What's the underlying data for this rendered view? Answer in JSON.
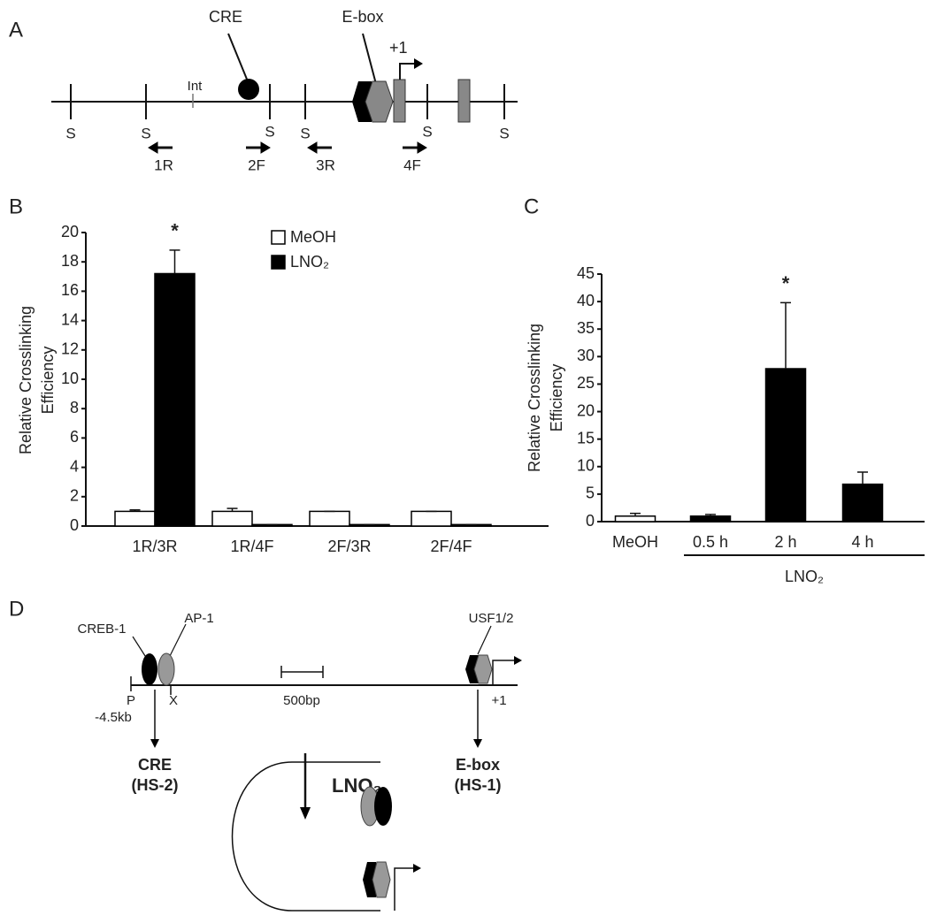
{
  "panels": {
    "a": "A",
    "b": "B",
    "c": "C",
    "d": "D"
  },
  "diagram_a": {
    "cre": "CRE",
    "ebox": "E-box",
    "int": "Int",
    "tss": "+1",
    "sites": [
      "S",
      "S",
      "S",
      "S",
      "S",
      "S"
    ],
    "primers": [
      "1R",
      "2F",
      "3R",
      "4F"
    ]
  },
  "chart_data": [
    {
      "type": "bar",
      "categories": [
        "1R/3R",
        "1R/4F",
        "2F/3R",
        "2F/4F"
      ],
      "series": [
        {
          "name": "MeOH",
          "color": "#ffffff",
          "values": [
            1,
            1,
            1,
            1
          ],
          "errors": [
            0.1,
            0.2,
            0,
            0
          ]
        },
        {
          "name": "LNO₂",
          "color": "#000000",
          "values": [
            17.2,
            0.1,
            0.1,
            0.1
          ],
          "errors": [
            1.6,
            0,
            0,
            0
          ]
        }
      ],
      "ylim": [
        0,
        20
      ],
      "yticks": [
        0,
        2,
        4,
        6,
        8,
        10,
        12,
        14,
        16,
        18,
        20
      ],
      "y_label": [
        "Relative Crosslinking",
        "Efficiency"
      ],
      "annotation": "*"
    },
    {
      "type": "bar",
      "categories": [
        "MeOH",
        "0.5 h",
        "2 h",
        "4 h"
      ],
      "values": [
        1,
        1,
        27.8,
        6.8
      ],
      "errors": [
        0.5,
        0.3,
        12,
        2.2
      ],
      "colors": [
        "#ffffff",
        "#000000",
        "#000000",
        "#000000"
      ],
      "ylim": [
        0,
        45
      ],
      "yticks": [
        0,
        5,
        10,
        15,
        20,
        25,
        30,
        35,
        40,
        45
      ],
      "y_label": [
        "Relative Crosslinking",
        "Efficiency"
      ],
      "annotation": "*",
      "group_label": "LNO₂"
    }
  ],
  "diagram_d": {
    "creb": "CREB-1",
    "ap1": "AP-1",
    "usf": "USF1/2",
    "p": "P",
    "kb": "-4.5kb",
    "x": "X",
    "scale": "500bp",
    "tss": "+1",
    "cre": "CRE",
    "hs2": "(HS-2)",
    "ebox": "E-box",
    "hs1": "(HS-1)",
    "treatment": "LNO₂"
  }
}
